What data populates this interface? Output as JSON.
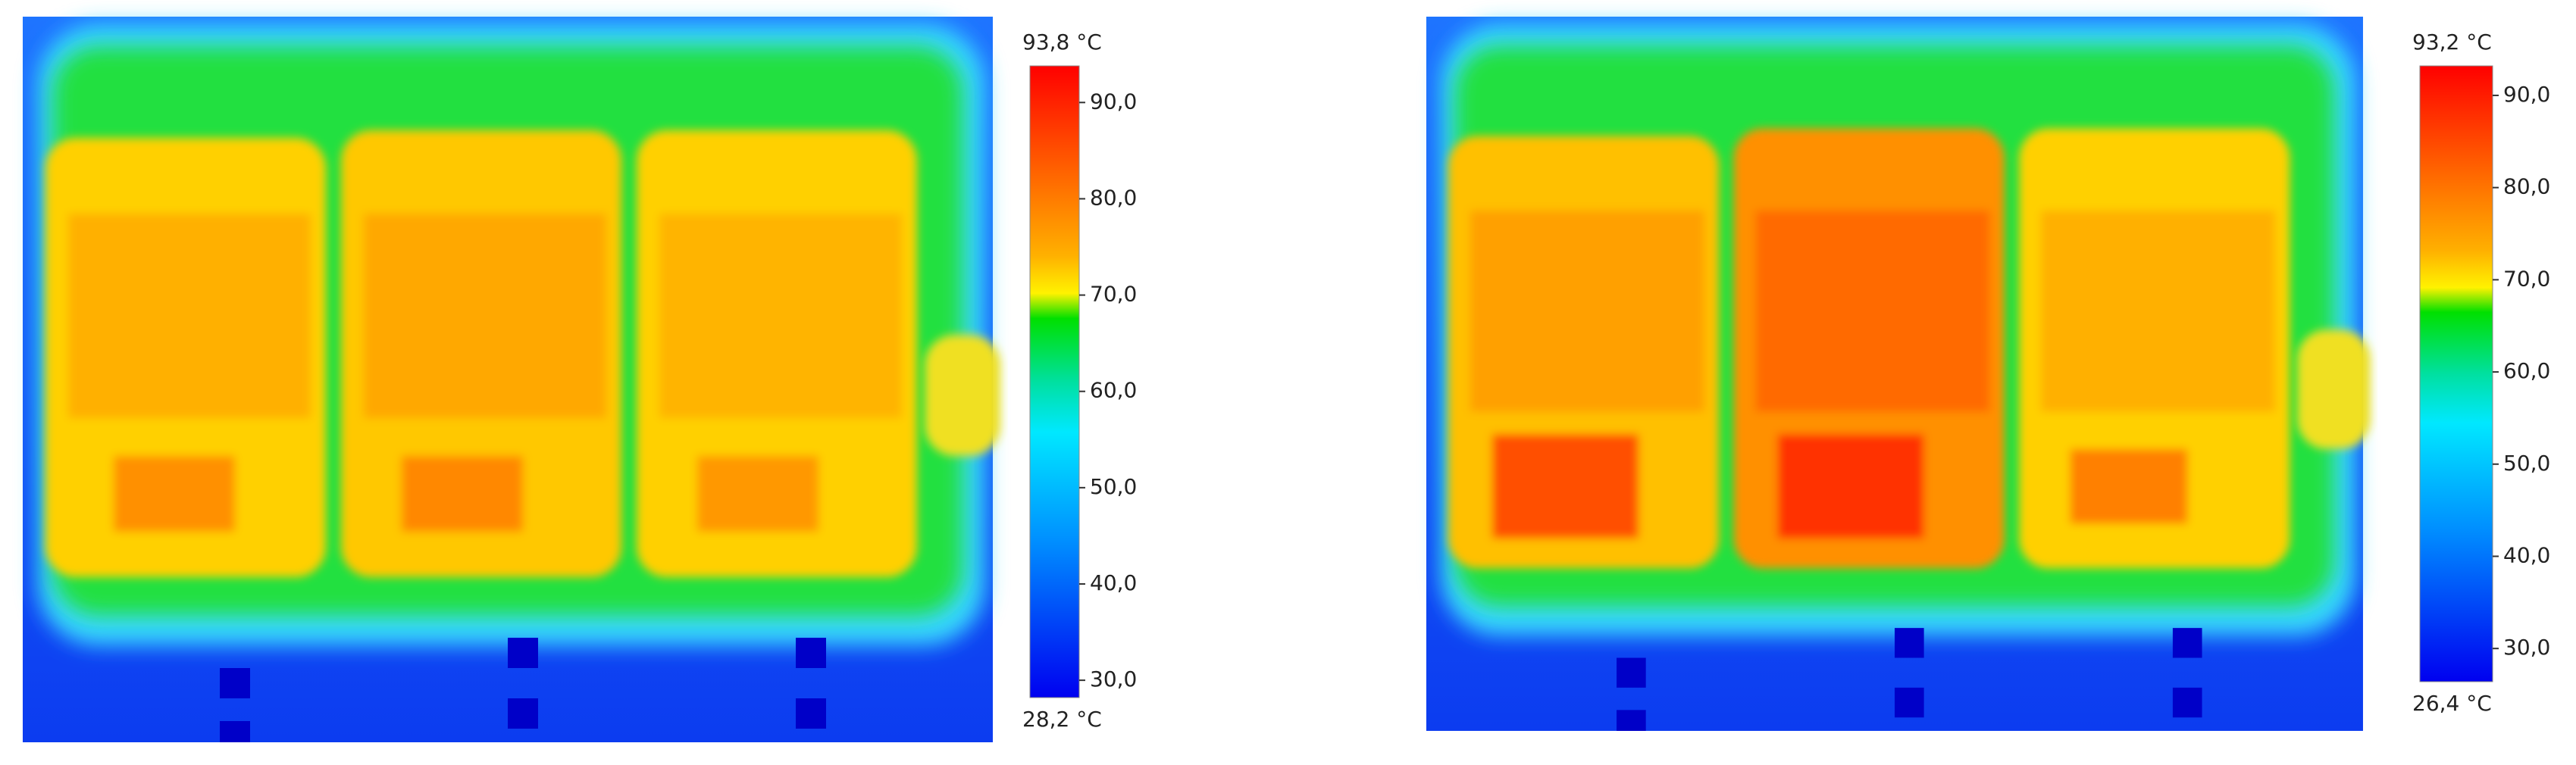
{
  "panels": [
    {
      "max": {
        "value": 93.8,
        "label": "93,8 °C"
      },
      "min": {
        "value": 28.2,
        "label": "28,2 °C"
      },
      "ticks": [
        {
          "value": 90,
          "label": "90,0"
        },
        {
          "value": 80,
          "label": "80,0"
        },
        {
          "value": 70,
          "label": "70,0"
        },
        {
          "value": 60,
          "label": "60,0"
        },
        {
          "value": 50,
          "label": "50,0"
        },
        {
          "value": 40,
          "label": "40,0"
        },
        {
          "value": 30,
          "label": "30,0"
        }
      ]
    },
    {
      "max": {
        "value": 93.2,
        "label": "93,2 °C"
      },
      "min": {
        "value": 26.4,
        "label": "26,4 °C"
      },
      "ticks": [
        {
          "value": 90,
          "label": "90,0"
        },
        {
          "value": 80,
          "label": "80,0"
        },
        {
          "value": 70,
          "label": "70,0"
        },
        {
          "value": 60,
          "label": "60,0"
        },
        {
          "value": 50,
          "label": "50,0"
        },
        {
          "value": 40,
          "label": "40,0"
        },
        {
          "value": 30,
          "label": "30,0"
        }
      ]
    }
  ]
}
